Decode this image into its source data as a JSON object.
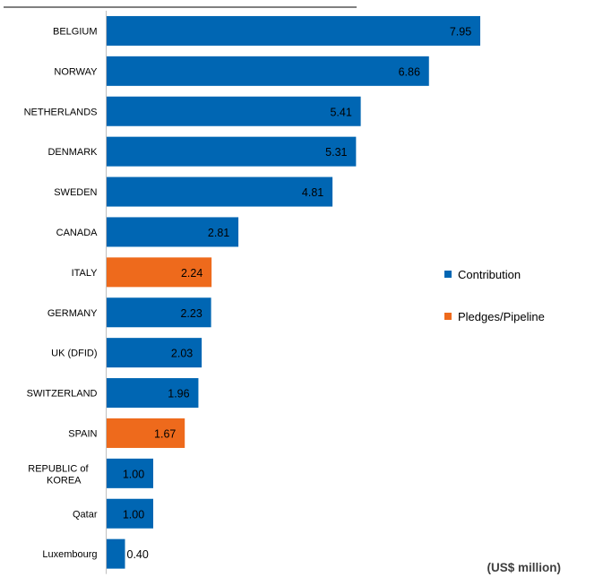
{
  "chart_data": {
    "type": "bar",
    "orientation": "horizontal",
    "categories": [
      "BELGIUM",
      "NORWAY",
      "NETHERLANDS",
      "DENMARK",
      "SWEDEN",
      "CANADA",
      "ITALY",
      "GERMANY",
      "UK (DFID)",
      "SWITZERLAND",
      "SPAIN",
      "REPUBLIC of KOREA",
      "Qatar",
      "Luxembourg"
    ],
    "values": [
      7.95,
      6.86,
      5.41,
      5.31,
      4.81,
      2.81,
      2.24,
      2.23,
      2.03,
      1.96,
      1.67,
      1.0,
      1.0,
      0.4
    ],
    "value_labels": [
      "7.95",
      "6.86",
      "5.41",
      "5.31",
      "4.81",
      "2.81",
      "2.24",
      "2.23",
      "2.03",
      "1.96",
      "1.67",
      "1.00",
      "1.00",
      "0.40"
    ],
    "bar_series": [
      "Contribution",
      "Contribution",
      "Contribution",
      "Contribution",
      "Contribution",
      "Contribution",
      "Pledges/Pipeline",
      "Contribution",
      "Contribution",
      "Contribution",
      "Pledges/Pipeline",
      "Contribution",
      "Contribution",
      "Contribution"
    ],
    "series": [
      {
        "name": "Contribution",
        "color": "#0066b3"
      },
      {
        "name": "Pledges/Pipeline",
        "color": "#ee6a1c"
      }
    ],
    "xlim": [
      0,
      8.3
    ],
    "unit_note": "(US$ million)",
    "legend_position": "right",
    "grid": false
  }
}
